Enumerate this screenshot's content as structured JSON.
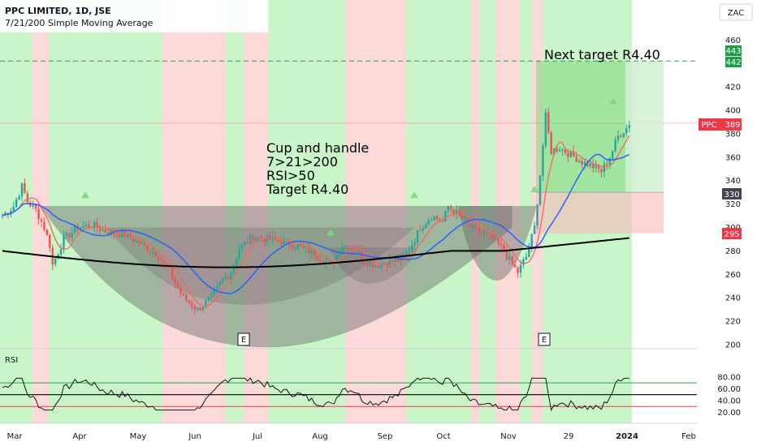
{
  "header": {
    "title": "PPC LIMITED, 1D, JSE",
    "subtitle": "7/21/200 Simple Moving Average",
    "currency": "ZAC"
  },
  "colors": {
    "bull": "#26a69a",
    "bear": "#ef5350",
    "sma7": "#f06a5d",
    "sma21": "#2962ff",
    "sma200": "#000000",
    "green_zone": "#c9f5c9",
    "red_zone": "#fcdada",
    "target_zone": "#7ed67e",
    "stop_zone": "#f8b9b9",
    "pattern_fill": "#6b6b6b",
    "target_line": "#2e9d4f",
    "price_badge": "#f23645",
    "tag_dark": "#434651"
  },
  "annotations": {
    "setup_lines": [
      "Cup and handle",
      "7>21>200",
      "RSI>50",
      "Target R4.40"
    ],
    "next_target": "Next target R4.40",
    "earnings_marker": "E"
  },
  "price_badges": {
    "target_top": "443",
    "target_bottom": "442",
    "symbol": "PPC",
    "last": "389",
    "entry": "330",
    "stop": "295"
  },
  "chart_data": [
    {
      "type": "candlestick",
      "title": "PPC LIMITED, 1D, JSE",
      "ylim": [
        200,
        470
      ],
      "y_ticks": [
        "200",
        "220",
        "240",
        "260",
        "280",
        "300",
        "320",
        "340",
        "360",
        "380",
        "400",
        "420",
        "440",
        "460"
      ],
      "x_ticks": [
        "Mar",
        "Apr",
        "May",
        "Jun",
        "Jul",
        "Aug",
        "Sep",
        "Oct",
        "Nov",
        "29",
        "2024",
        "Feb"
      ],
      "series": [
        {
          "name": "7",
          "style": "sma7"
        },
        {
          "name": "21",
          "style": "sma21"
        },
        {
          "name": "200",
          "style": "sma200"
        }
      ],
      "levels": {
        "target": 442,
        "last": 389,
        "entry": 330,
        "stop": 295
      }
    },
    {
      "type": "line",
      "title": "RSI",
      "ylim": [
        20,
        80
      ],
      "y_ticks": [
        "20.00",
        "40.00",
        "60.00",
        "80.00"
      ],
      "levels": [
        30,
        50,
        70
      ]
    }
  ]
}
